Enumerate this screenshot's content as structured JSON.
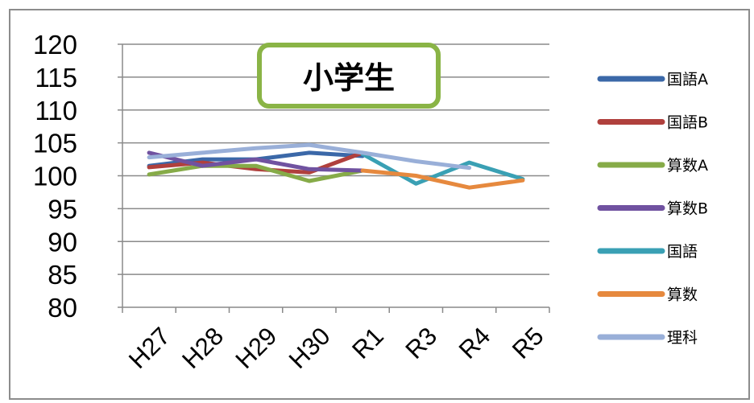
{
  "chart_data": {
    "type": "line",
    "title": "小学生",
    "categories": [
      "H27",
      "H28",
      "H29",
      "H30",
      "R1",
      "R3",
      "R4",
      "R5"
    ],
    "ylim": [
      80,
      120
    ],
    "yticks": [
      80,
      85,
      90,
      95,
      100,
      105,
      110,
      115,
      120
    ],
    "grid": true,
    "legend_position": "right",
    "series": [
      {
        "name": "国語A",
        "color": "#3b68a8",
        "values": [
          101.5,
          102.5,
          102.5,
          103.5,
          103.0,
          null,
          null,
          null
        ]
      },
      {
        "name": "国語B",
        "color": "#b0403d",
        "values": [
          101.3,
          102.0,
          101.0,
          100.5,
          103.5,
          null,
          null,
          null
        ]
      },
      {
        "name": "算数A",
        "color": "#86ab48",
        "values": [
          100.2,
          101.5,
          101.5,
          99.2,
          100.8,
          null,
          null,
          null
        ]
      },
      {
        "name": "算数B",
        "color": "#7052a0",
        "values": [
          103.5,
          101.5,
          102.5,
          101.0,
          100.8,
          null,
          null,
          null
        ]
      },
      {
        "name": "国語",
        "color": "#3aa0b4",
        "values": [
          null,
          null,
          null,
          null,
          103.3,
          98.8,
          102.0,
          99.5
        ]
      },
      {
        "name": "算数",
        "color": "#e6893e",
        "values": [
          null,
          null,
          null,
          null,
          100.8,
          100.0,
          98.2,
          99.3
        ]
      },
      {
        "name": "理科",
        "color": "#99afd8",
        "values": [
          102.8,
          103.5,
          104.2,
          104.7,
          103.5,
          102.2,
          101.2,
          null
        ]
      }
    ]
  }
}
